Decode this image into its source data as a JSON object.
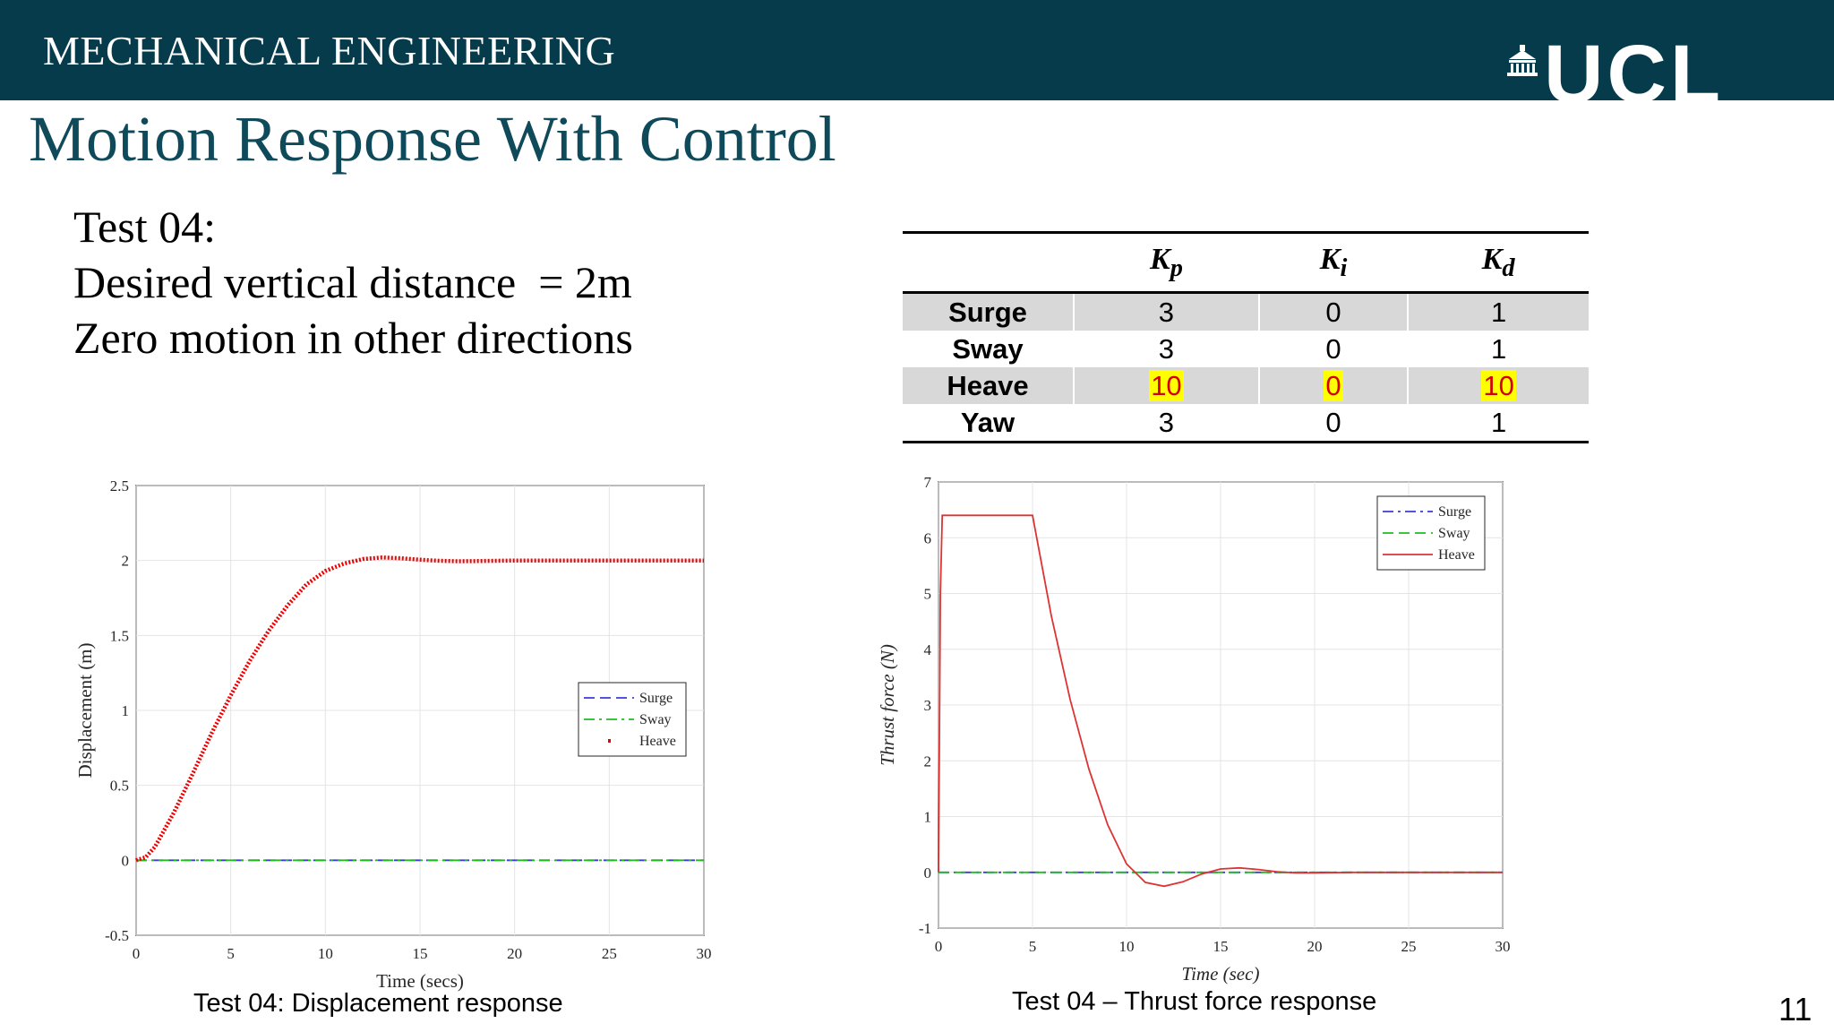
{
  "header": {
    "department": "MECHANICAL ENGINEERING",
    "logo_text": "UCL",
    "logo_icon": "portico-icon",
    "background_color": "#063b4c"
  },
  "title": "Motion Response With Control",
  "description": {
    "line1": "Test 04:",
    "line2": "Desired vertical distance  = 2m",
    "line3": "Zero motion in other directions"
  },
  "gains_table": {
    "columns": [
      "K_p",
      "K_i",
      "K_d"
    ],
    "rows": [
      {
        "name": "Surge",
        "kp": "3",
        "ki": "0",
        "kd": "1"
      },
      {
        "name": "Sway",
        "kp": "3",
        "ki": "0",
        "kd": "1"
      },
      {
        "name": "Heave",
        "kp": "10",
        "ki": "0",
        "kd": "10"
      },
      {
        "name": "Yaw",
        "kp": "3",
        "ki": "0",
        "kd": "1"
      }
    ],
    "highlight_row": "Heave"
  },
  "chart_data": [
    {
      "type": "line",
      "title": "",
      "xlabel": "Time (secs)",
      "ylabel": "Displacement (m)",
      "xlim": [
        0,
        30
      ],
      "ylim": [
        -0.5,
        2.5
      ],
      "xticks": [
        0,
        5,
        10,
        15,
        20,
        25,
        30
      ],
      "yticks": [
        -0.5,
        0,
        0.5,
        1,
        1.5,
        2,
        2.5
      ],
      "grid": true,
      "legend_position": "right",
      "series": [
        {
          "name": "Surge",
          "style": "dashed",
          "color": "#3b3bd8",
          "x": [
            0,
            30
          ],
          "y": [
            0,
            0
          ]
        },
        {
          "name": "Sway",
          "style": "dash-dot",
          "color": "#22bb22",
          "x": [
            0,
            30
          ],
          "y": [
            0,
            0
          ]
        },
        {
          "name": "Heave",
          "style": "dotted",
          "color": "#ee0000",
          "x": [
            0,
            0.5,
            1,
            2,
            3,
            4,
            5,
            6,
            7,
            8,
            9,
            10,
            11,
            12,
            13,
            14,
            15,
            16,
            17,
            18,
            19,
            20,
            22,
            25,
            28,
            30
          ],
          "y": [
            0,
            0.02,
            0.09,
            0.32,
            0.58,
            0.85,
            1.1,
            1.33,
            1.53,
            1.7,
            1.84,
            1.93,
            1.98,
            2.01,
            2.02,
            2.015,
            2.005,
            1.998,
            1.995,
            1.996,
            1.998,
            2.0,
            2.0,
            2.0,
            2.0,
            2.0
          ]
        }
      ],
      "caption": "Test 04: Displacement response"
    },
    {
      "type": "line",
      "title": "",
      "xlabel": "Time (sec)",
      "ylabel": "Thrust force (N)",
      "xlim": [
        0,
        30
      ],
      "ylim": [
        -1,
        7
      ],
      "xticks": [
        0,
        5,
        10,
        15,
        20,
        25,
        30
      ],
      "yticks": [
        -1,
        0,
        1,
        2,
        3,
        4,
        5,
        6,
        7
      ],
      "grid": true,
      "legend_position": "top-right",
      "series": [
        {
          "name": "Surge",
          "style": "dash-dot",
          "color": "#3b3bd8",
          "x": [
            0,
            30
          ],
          "y": [
            0,
            0
          ]
        },
        {
          "name": "Sway",
          "style": "dashed",
          "color": "#22bb22",
          "x": [
            0,
            30
          ],
          "y": [
            0,
            0
          ]
        },
        {
          "name": "Heave",
          "style": "solid",
          "color": "#dd3333",
          "x": [
            0,
            0.1,
            0.2,
            4.9,
            5,
            6,
            7,
            8,
            9,
            10,
            11,
            12,
            13,
            14,
            15,
            16,
            17,
            18,
            19,
            20,
            22,
            25,
            30
          ],
          "y": [
            0,
            5,
            6.4,
            6.4,
            6.4,
            4.6,
            3.1,
            1.85,
            0.85,
            0.15,
            -0.18,
            -0.25,
            -0.17,
            -0.03,
            0.06,
            0.08,
            0.05,
            0.01,
            -0.01,
            -0.01,
            0,
            0,
            0
          ]
        }
      ],
      "caption": "Test 04 – Thrust force response"
    }
  ],
  "page_number": "11"
}
